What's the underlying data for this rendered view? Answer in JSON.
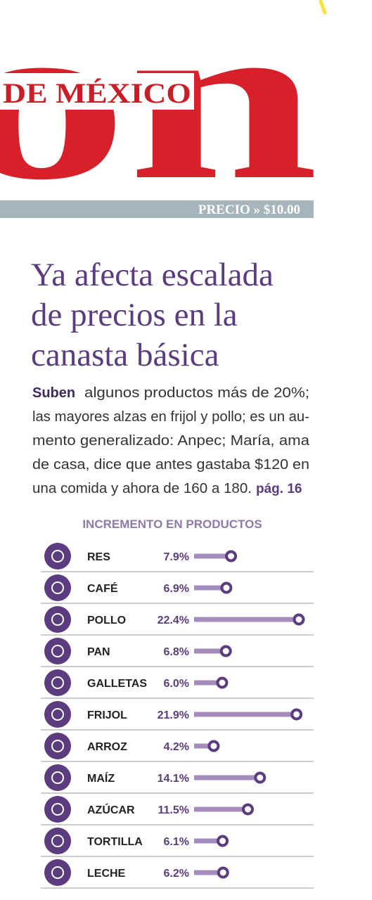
{
  "masthead": {
    "logo": "on",
    "subtitle": "DE MÉXICO",
    "price": "PRECIO » $10.00"
  },
  "headline": {
    "lines": [
      "Ya afecta escalada",
      "de precios en la",
      "canasta básica"
    ]
  },
  "subhead": {
    "lead": "Suben",
    "lines": [
      "algunos productos más de 20%;",
      "las mayores alzas en frijol y pollo; es un au-",
      "mento generalizado: Anpec; María, ama",
      "de casa, dice que antes gastaba $120 en",
      "una comida y ahora de 160 a 180."
    ],
    "ref": "pág. 16"
  },
  "chart_data": {
    "type": "bar",
    "title": "INCREMENTO EN PRODUCTOS",
    "categories": [
      "RES",
      "CAFÉ",
      "POLLO",
      "PAN",
      "GALLETAS",
      "FRIJOL",
      "ARROZ",
      "MAÍZ",
      "AZÚCAR",
      "TORTILLA",
      "LECHE"
    ],
    "values": [
      7.9,
      6.9,
      22.4,
      6.8,
      6.0,
      21.9,
      4.2,
      14.1,
      11.5,
      6.1,
      6.2
    ],
    "value_labels": [
      "7.9%",
      "6.9%",
      "22.4%",
      "6.8%",
      "6.0%",
      "21.9%",
      "4.2%",
      "14.1%",
      "11.5%",
      "6.1%",
      "6.2%"
    ],
    "color": "#a48cbf"
  }
}
